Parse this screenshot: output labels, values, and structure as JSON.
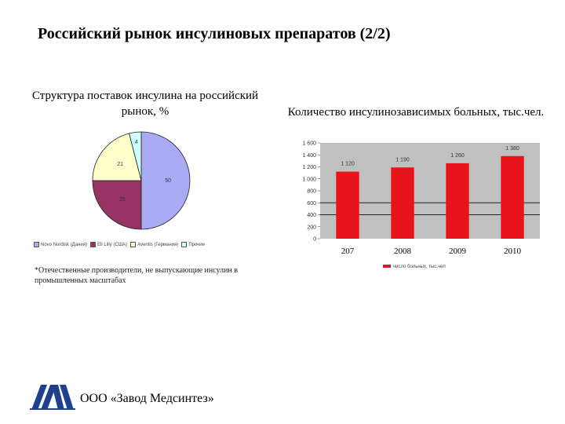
{
  "page": {
    "title": "Российский рынок инсулиновых препаратов (2/2)",
    "footnote": "*Отечественные производители, не выпускающие инсулин в промышленных масштабах",
    "company": "ООО «Завод Медсинтез»"
  },
  "chart_data": [
    {
      "type": "pie",
      "title": "Структура поставок инсулина на российский рынок, %",
      "slices": [
        {
          "label": "Novo Nordisk (Дания)",
          "value": 50,
          "color": "#aaaaf5"
        },
        {
          "label": "Eli Lilly (США)",
          "value": 25,
          "color": "#993366"
        },
        {
          "label": "Aventis (Германия)",
          "value": 21,
          "color": "#ffffcc"
        },
        {
          "label": "Прочие",
          "value": 4,
          "color": "#ccffff"
        }
      ],
      "legend": "bottom"
    },
    {
      "type": "bar",
      "title": "Количество инсулинозависимых больных, тыс.чел.",
      "categories": [
        "207",
        "2008",
        "2009",
        "2010"
      ],
      "series": [
        {
          "name": "число больных, тыс.чел",
          "values": [
            1120,
            1190,
            1260,
            1380
          ],
          "labels": [
            "1 120",
            "1 190",
            "1 260",
            "1 380"
          ],
          "color": "#e8141b"
        }
      ],
      "ylim": [
        0,
        1600
      ],
      "yticks": [
        0,
        200,
        400,
        600,
        800,
        1000,
        1200,
        1400,
        1600
      ],
      "ytick_labels": [
        "0",
        "200",
        "400",
        "600",
        "800",
        "1 000",
        "1 200",
        "1 400",
        "1 600"
      ],
      "legend": "bottom",
      "grid": false
    }
  ]
}
